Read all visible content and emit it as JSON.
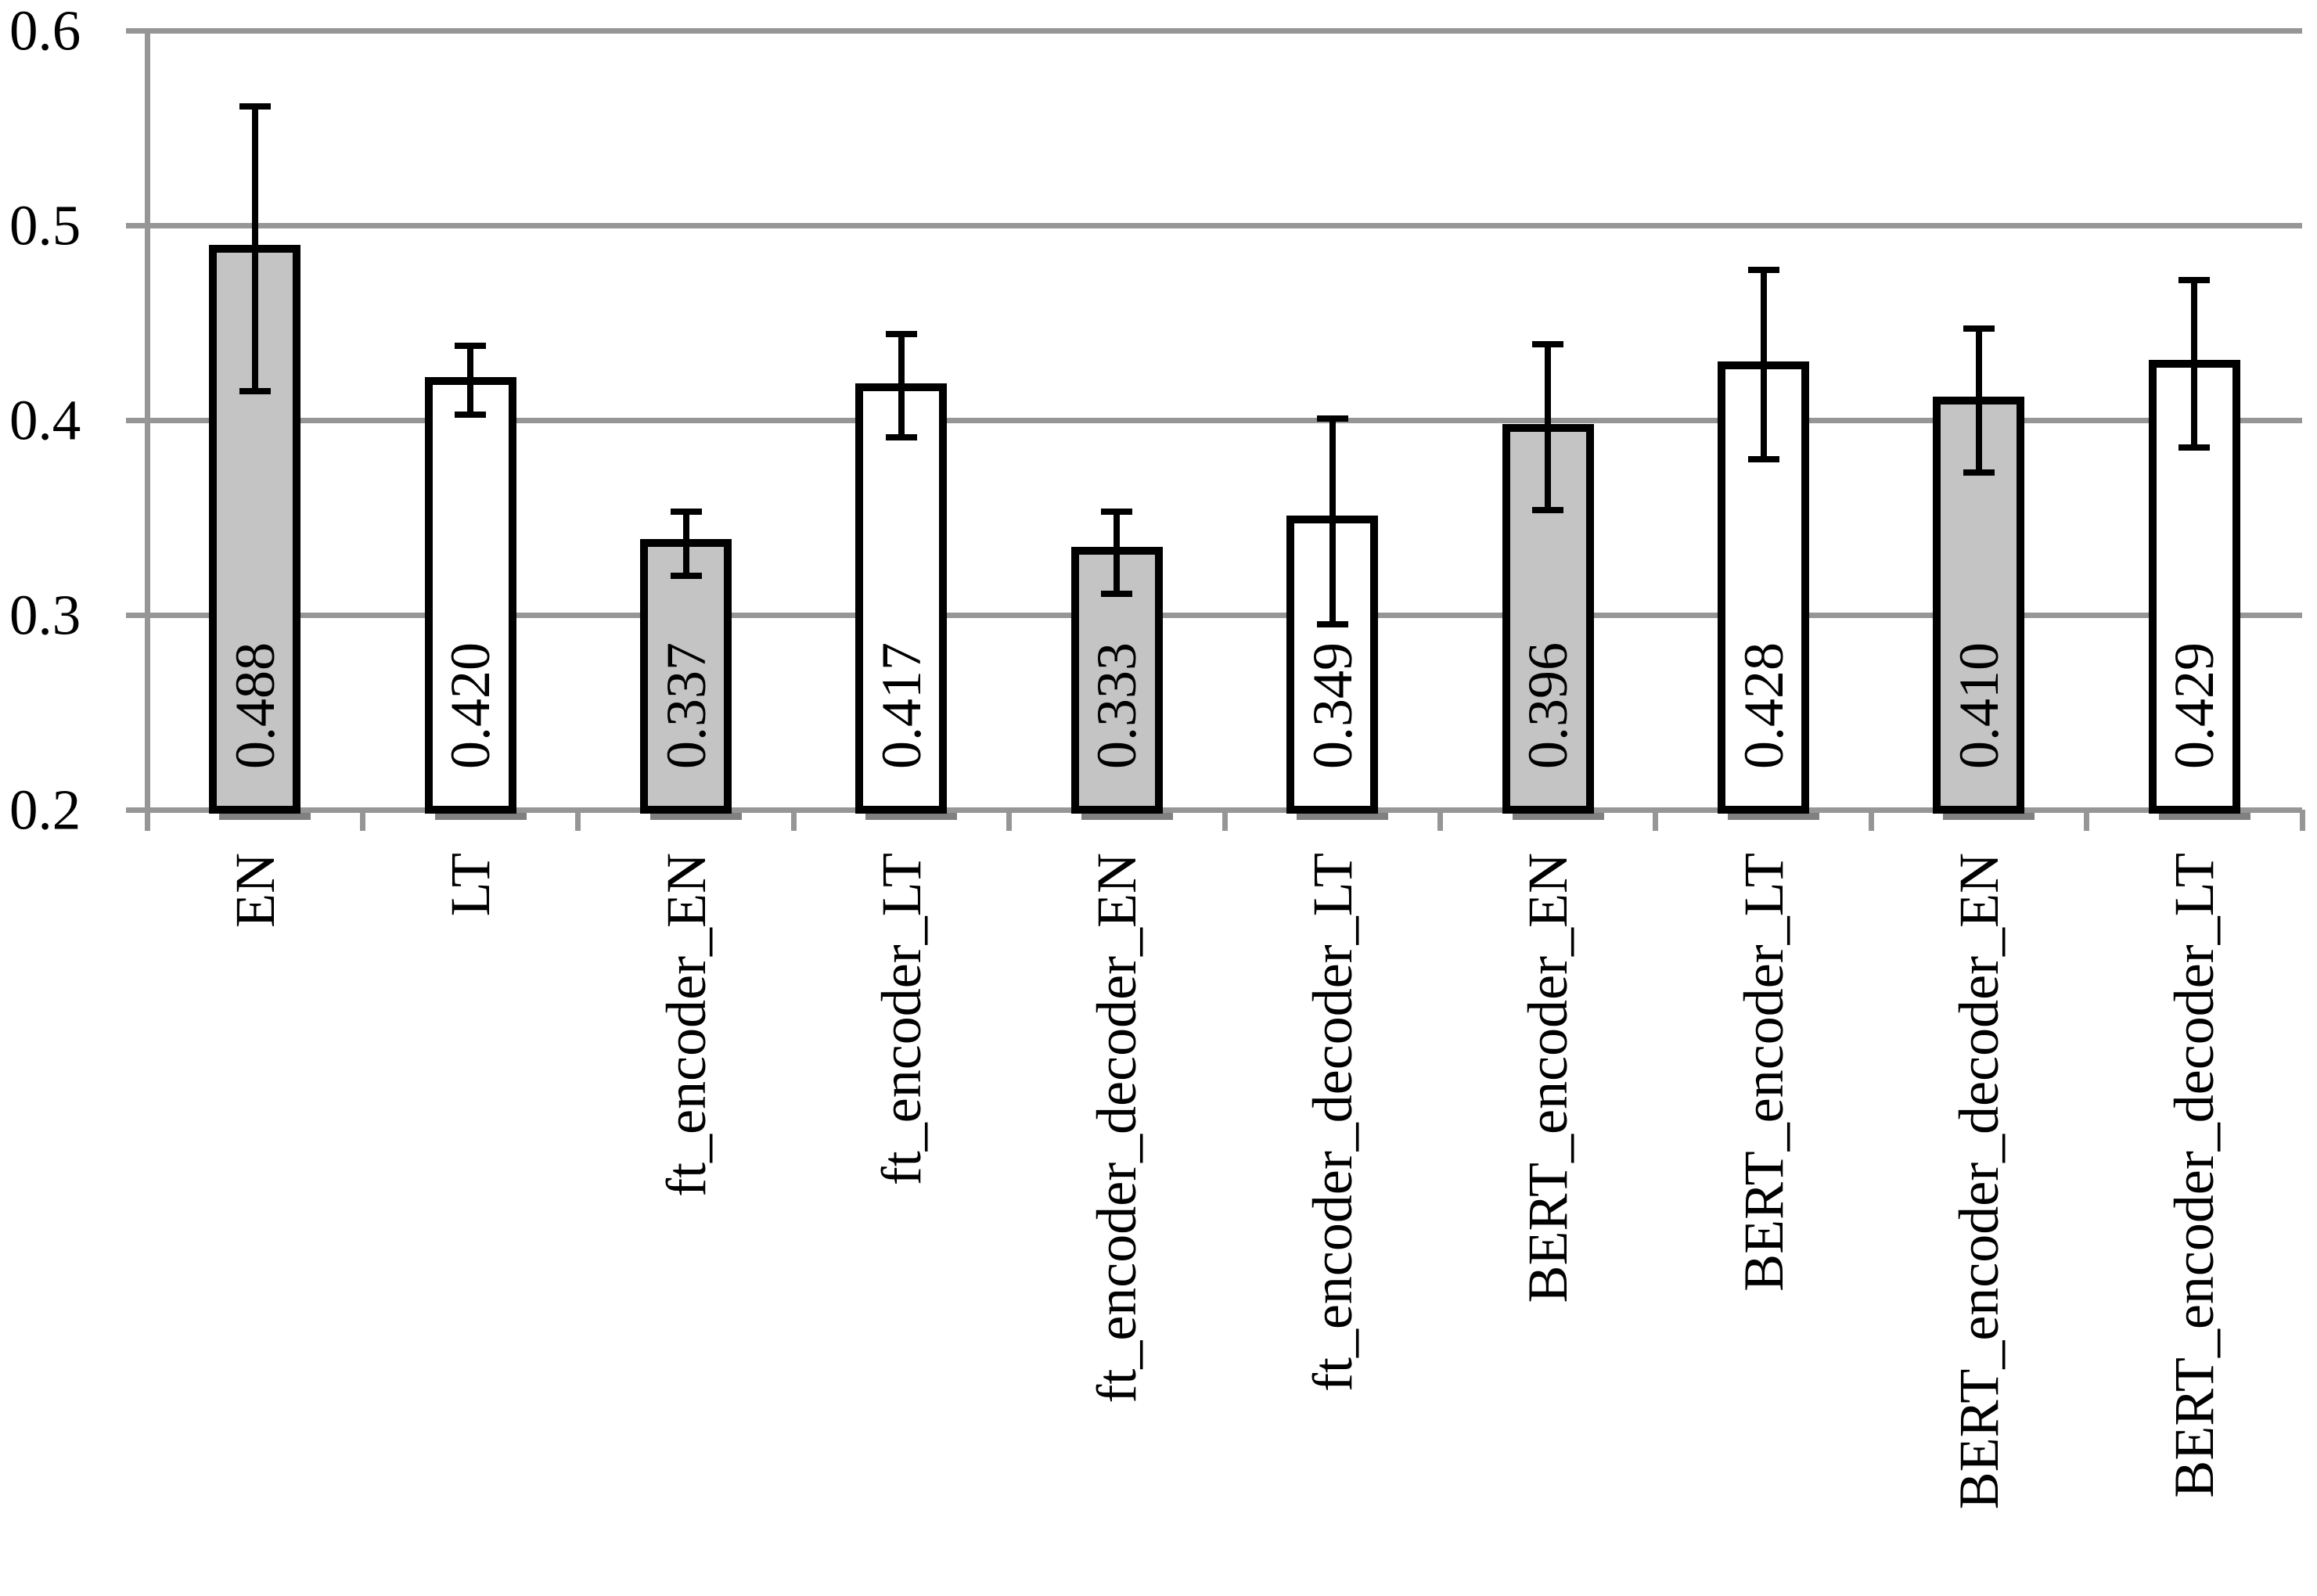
{
  "chart_data": {
    "type": "bar",
    "title": "",
    "xlabel": "",
    "ylabel": "",
    "categories": [
      "EN",
      "LT",
      "ft_encoder_EN",
      "ft_encoder_LT",
      "ft_encoder_decoder_EN",
      "ft_encoder_decoder_LT",
      "BERT_encoder_EN",
      "BERT_encoder_LT",
      "BERT_encoder_decoder_EN",
      "BERT_encoder_decoder_LT"
    ],
    "values": [
      0.488,
      0.42,
      0.337,
      0.417,
      0.333,
      0.349,
      0.396,
      0.428,
      0.41,
      0.429
    ],
    "value_labels": [
      "0.488",
      "0.420",
      "0.337",
      "0.417",
      "0.333",
      "0.349",
      "0.396",
      "0.428",
      "0.410",
      "0.429"
    ],
    "error_low": [
      0.415,
      0.403,
      0.32,
      0.391,
      0.311,
      0.295,
      0.354,
      0.38,
      0.373,
      0.386
    ],
    "error_high": [
      0.561,
      0.438,
      0.353,
      0.444,
      0.353,
      0.401,
      0.439,
      0.477,
      0.447,
      0.472
    ],
    "bar_styles": [
      "gray",
      "white",
      "gray",
      "white",
      "gray",
      "white",
      "gray",
      "white",
      "gray",
      "white"
    ],
    "ylim": [
      0.2,
      0.6
    ],
    "yticks": [
      0.6,
      0.5,
      0.4,
      0.3,
      0.2
    ],
    "ytick_labels": [
      "0.6",
      "0.5",
      "0.4",
      "0.3",
      "0.2"
    ],
    "grid": true,
    "legend": false,
    "layout_hints": {
      "bars_start_at_axis_min": true,
      "value_labels_rotated_90ccw_inside_bar_base": true,
      "category_labels_rotated_90ccw_below_axis": true
    },
    "colors": {
      "bar_gray_fill": "#c4c4c4",
      "bar_white_fill": "#ffffff",
      "bar_border": "#000000",
      "error_bar": "#000000",
      "gridline": "#969696",
      "axis_line": "#969696",
      "bar_shadow": "#808080",
      "text": "#000000",
      "background": "#ffffff"
    }
  }
}
